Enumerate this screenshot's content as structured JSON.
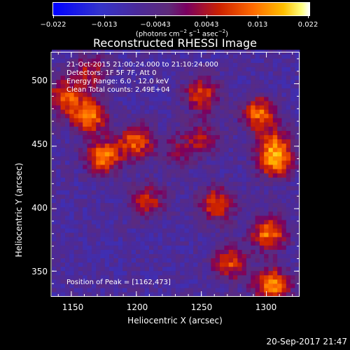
{
  "colorbar": {
    "ticks": [
      "−0.022",
      "−0.013",
      "−0.0043",
      "0.0043",
      "0.013",
      "0.022"
    ],
    "unit_prefix": "(photons cm",
    "unit_exp1": "−2",
    "unit_mid": " s",
    "unit_exp2": "−1",
    "unit_mid2": " asec",
    "unit_exp3": "−2",
    "unit_suffix": ")",
    "range": [
      -0.022,
      0.022
    ]
  },
  "plot": {
    "title": "Reconstructed RHESSI Image",
    "info_lines": [
      "21-Oct-2015 21:00:24.000 to 21:10:24.000",
      "Detectors: 1F 5F 7F, Att 0",
      "Energy Range: 6.0 - 12.0 keV",
      "Clean     Total counts: 2.49E+04"
    ],
    "peak_text": "Position of Peak = [1162,473]",
    "footer_date": "20-Sep-2017 21:47"
  },
  "chart_data": {
    "type": "heatmap",
    "title": "Reconstructed RHESSI Image",
    "xlabel": "Heliocentric X (arcsec)",
    "ylabel": "Heliocentric Y (arcsec)",
    "xlim": [
      1135,
      1325
    ],
    "ylim": [
      330,
      525
    ],
    "xticks": [
      "1150",
      "1200",
      "1250",
      "1300"
    ],
    "xtick_values": [
      1150,
      1200,
      1250,
      1300
    ],
    "yticks": [
      "350",
      "400",
      "450",
      "500"
    ],
    "ytick_values": [
      350,
      400,
      450,
      500
    ],
    "color_min": -0.022,
    "color_max": 0.022,
    "sources": [
      {
        "x": 1162,
        "y": 473,
        "amp": 0.022
      },
      {
        "x": 1143,
        "y": 488,
        "amp": 0.017
      },
      {
        "x": 1173,
        "y": 440,
        "amp": 0.02
      },
      {
        "x": 1198,
        "y": 452,
        "amp": 0.018
      },
      {
        "x": 1207,
        "y": 405,
        "amp": 0.013
      },
      {
        "x": 1249,
        "y": 490,
        "amp": 0.016
      },
      {
        "x": 1250,
        "y": 455,
        "amp": 0.01
      },
      {
        "x": 1260,
        "y": 402,
        "amp": 0.017
      },
      {
        "x": 1293,
        "y": 475,
        "amp": 0.019
      },
      {
        "x": 1305,
        "y": 452,
        "amp": 0.012
      },
      {
        "x": 1305,
        "y": 437,
        "amp": 0.021
      },
      {
        "x": 1300,
        "y": 379,
        "amp": 0.02
      },
      {
        "x": 1270,
        "y": 355,
        "amp": 0.016
      },
      {
        "x": 1303,
        "y": 337,
        "amp": 0.022
      },
      {
        "x": 1163,
        "y": 508,
        "amp": 0.012
      },
      {
        "x": 1232,
        "y": 446,
        "amp": 0.008
      }
    ]
  }
}
